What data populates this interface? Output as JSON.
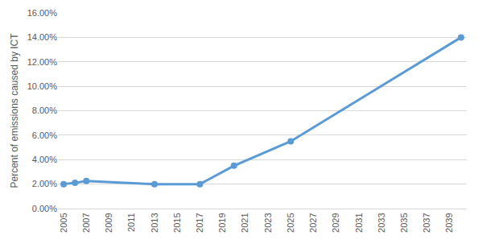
{
  "chart_data": {
    "type": "line",
    "y_label": "Percent of emissions caused by ICT",
    "x": [
      2005,
      2006,
      2007,
      2013,
      2017,
      2020,
      2025,
      2040
    ],
    "values": [
      2.0,
      2.1,
      2.25,
      2.0,
      2.0,
      3.5,
      5.5,
      14.0
    ],
    "color": "#5b9bd5",
    "marker": "circle",
    "xlim": [
      2004.5,
      2040.5
    ],
    "xticks": [
      2005,
      2007,
      2009,
      2011,
      2013,
      2015,
      2017,
      2019,
      2021,
      2023,
      2025,
      2027,
      2029,
      2031,
      2033,
      2035,
      2037,
      2039
    ],
    "ylim": [
      0,
      16
    ],
    "yticks": [
      {
        "value": 0,
        "label": "0.00%"
      },
      {
        "value": 2,
        "label": "2.00%"
      },
      {
        "value": 4,
        "label": "4.00%"
      },
      {
        "value": 6,
        "label": "6.00%"
      },
      {
        "value": 8,
        "label": "8.00%"
      },
      {
        "value": 10,
        "label": "10.00%"
      },
      {
        "value": 12,
        "label": "12.00%"
      },
      {
        "value": 14,
        "label": "14.00%"
      },
      {
        "value": 16,
        "label": "16.00%"
      }
    ],
    "grid": true
  }
}
